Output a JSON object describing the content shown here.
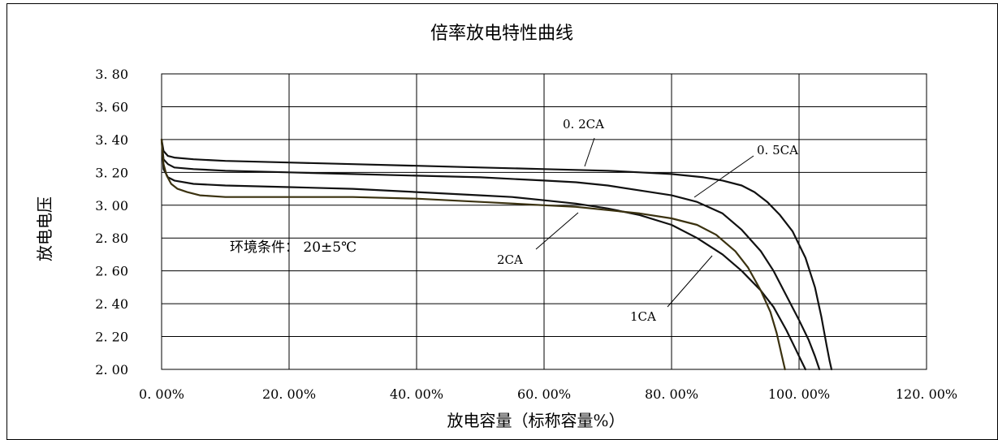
{
  "chart_data": {
    "type": "line",
    "title": "倍率放电特性曲线",
    "xlabel": "放电容量（标称容量%）",
    "ylabel": "放电电压",
    "xlim": [
      0,
      120
    ],
    "ylim": [
      2.0,
      3.8
    ],
    "x_ticks": [
      "0. 00%",
      "20. 00%",
      "40. 00%",
      "60. 00%",
      "80. 00%",
      "100. 00%",
      "120. 00%"
    ],
    "y_ticks": [
      "3. 80",
      "3. 60",
      "3. 40",
      "3. 20",
      "3. 00",
      "2. 80",
      "2. 60",
      "2. 40",
      "2. 20",
      "2. 00"
    ],
    "grid": true,
    "annotation": "环境条件： 20±5℃",
    "series": [
      {
        "name": "0. 2CA",
        "color": "#111111",
        "x": [
          0,
          0.3,
          1,
          2,
          5,
          10,
          20,
          30,
          40,
          50,
          60,
          70,
          75,
          80,
          85,
          88,
          91,
          93,
          95,
          97,
          99,
          101,
          102.5,
          103.5,
          104.3,
          104.8,
          105.1
        ],
        "y": [
          3.4,
          3.33,
          3.3,
          3.29,
          3.28,
          3.27,
          3.26,
          3.25,
          3.24,
          3.23,
          3.22,
          3.21,
          3.2,
          3.19,
          3.17,
          3.15,
          3.12,
          3.08,
          3.02,
          2.94,
          2.84,
          2.68,
          2.5,
          2.32,
          2.15,
          2.05,
          2.0
        ]
      },
      {
        "name": "0. 5CA",
        "color": "#111111",
        "x": [
          0,
          0.3,
          1,
          2,
          5,
          10,
          20,
          30,
          40,
          50,
          60,
          65,
          70,
          75,
          80,
          84,
          88,
          91,
          94,
          96,
          98,
          100,
          101.5,
          102.5,
          103.2
        ],
        "y": [
          3.4,
          3.28,
          3.25,
          3.23,
          3.22,
          3.21,
          3.2,
          3.19,
          3.18,
          3.17,
          3.15,
          3.14,
          3.12,
          3.09,
          3.06,
          3.02,
          2.95,
          2.85,
          2.72,
          2.6,
          2.45,
          2.3,
          2.18,
          2.08,
          2.0
        ]
      },
      {
        "name": "1CA",
        "color": "#111111",
        "x": [
          0,
          0.3,
          1,
          2,
          5,
          10,
          20,
          30,
          40,
          50,
          55,
          60,
          65,
          70,
          75,
          80,
          84,
          88,
          91,
          94,
          96,
          98,
          99.5,
          100.5,
          101
        ],
        "y": [
          3.4,
          3.22,
          3.17,
          3.15,
          3.13,
          3.12,
          3.11,
          3.1,
          3.08,
          3.06,
          3.05,
          3.03,
          3.01,
          2.98,
          2.94,
          2.88,
          2.8,
          2.7,
          2.6,
          2.48,
          2.38,
          2.24,
          2.12,
          2.04,
          2.0
        ]
      },
      {
        "name": "2CA",
        "color": "#3b3210",
        "x": [
          0,
          0.3,
          0.8,
          1.5,
          2.5,
          4,
          6,
          10,
          20,
          30,
          40,
          50,
          60,
          65,
          70,
          75,
          80,
          84,
          87,
          90,
          92,
          94,
          95.5,
          96.5,
          97.2,
          97.8
        ],
        "y": [
          3.4,
          3.25,
          3.18,
          3.13,
          3.1,
          3.08,
          3.06,
          3.05,
          3.05,
          3.05,
          3.04,
          3.02,
          3.0,
          2.99,
          2.97,
          2.95,
          2.92,
          2.88,
          2.82,
          2.72,
          2.62,
          2.48,
          2.35,
          2.22,
          2.1,
          2.0
        ]
      }
    ],
    "series_labels": [
      {
        "text": "0. 2CA"
      },
      {
        "text": "0. 5CA"
      },
      {
        "text": "2CA"
      },
      {
        "text": "1CA"
      }
    ]
  }
}
